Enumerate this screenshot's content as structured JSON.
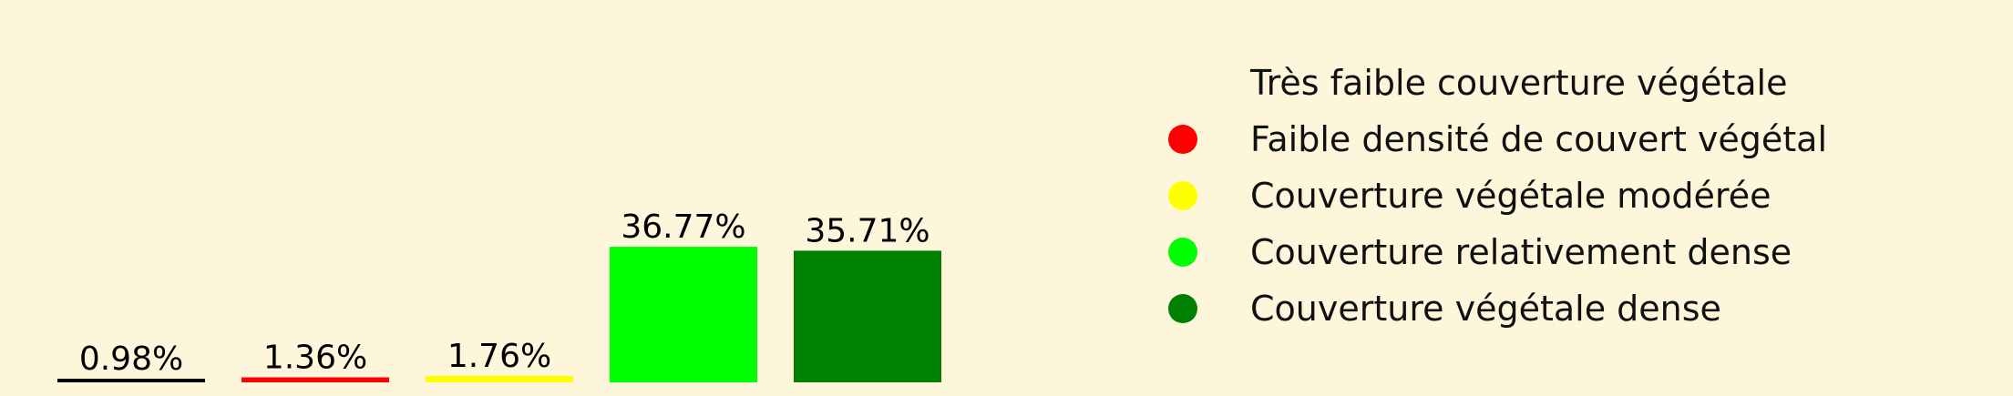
{
  "chart_data": {
    "type": "bar",
    "title": "",
    "xlabel": "",
    "ylabel": "",
    "ylim": [
      0,
      40
    ],
    "grid": false,
    "legend_position": "right",
    "categories": [
      "Très faible couverture végétale",
      "Faible densité de couvert végétal",
      "Couverture végétale modérée",
      "Couverture relativement dense",
      "Couverture végétale dense"
    ],
    "values": [
      0.98,
      1.36,
      1.76,
      36.77,
      35.71
    ],
    "data_labels": [
      "0.98%",
      "1.36%",
      "1.76%",
      "36.77%",
      "35.71%"
    ],
    "colors": [
      "#000000",
      "#ff0000",
      "#ffff00",
      "#00ff00",
      "#008000"
    ],
    "legend_marker_colors": [
      "#fdf6db",
      "#ff0000",
      "#ffff00",
      "#00ff00",
      "#008000"
    ]
  }
}
